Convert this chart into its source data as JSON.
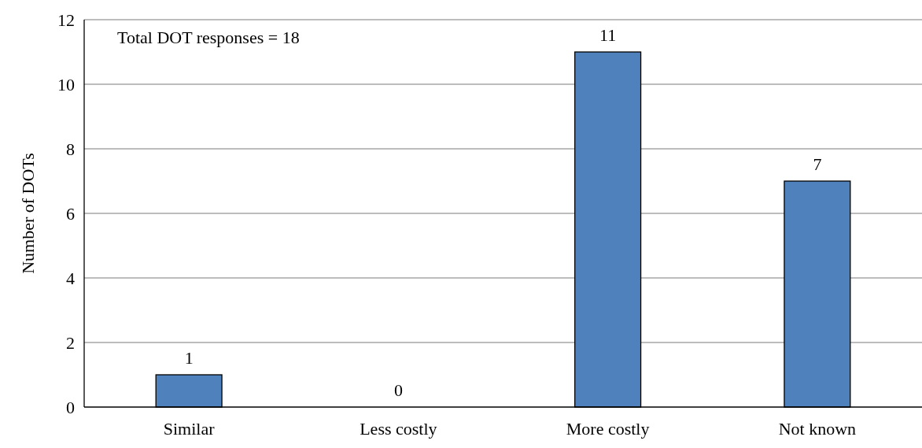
{
  "chart_data": {
    "type": "bar",
    "ylabel": "Number of DOTs",
    "categories": [
      "Similar",
      "Less costly",
      "More costly",
      "Not known"
    ],
    "values": [
      1,
      0,
      11,
      7
    ],
    "color": "#4f81bd",
    "ylim": [
      0,
      12
    ],
    "yticks": [
      0,
      2,
      4,
      6,
      8,
      10,
      12
    ],
    "grid": "y",
    "data_labels": true,
    "annotations": [
      "Total DOT responses = 18"
    ]
  }
}
